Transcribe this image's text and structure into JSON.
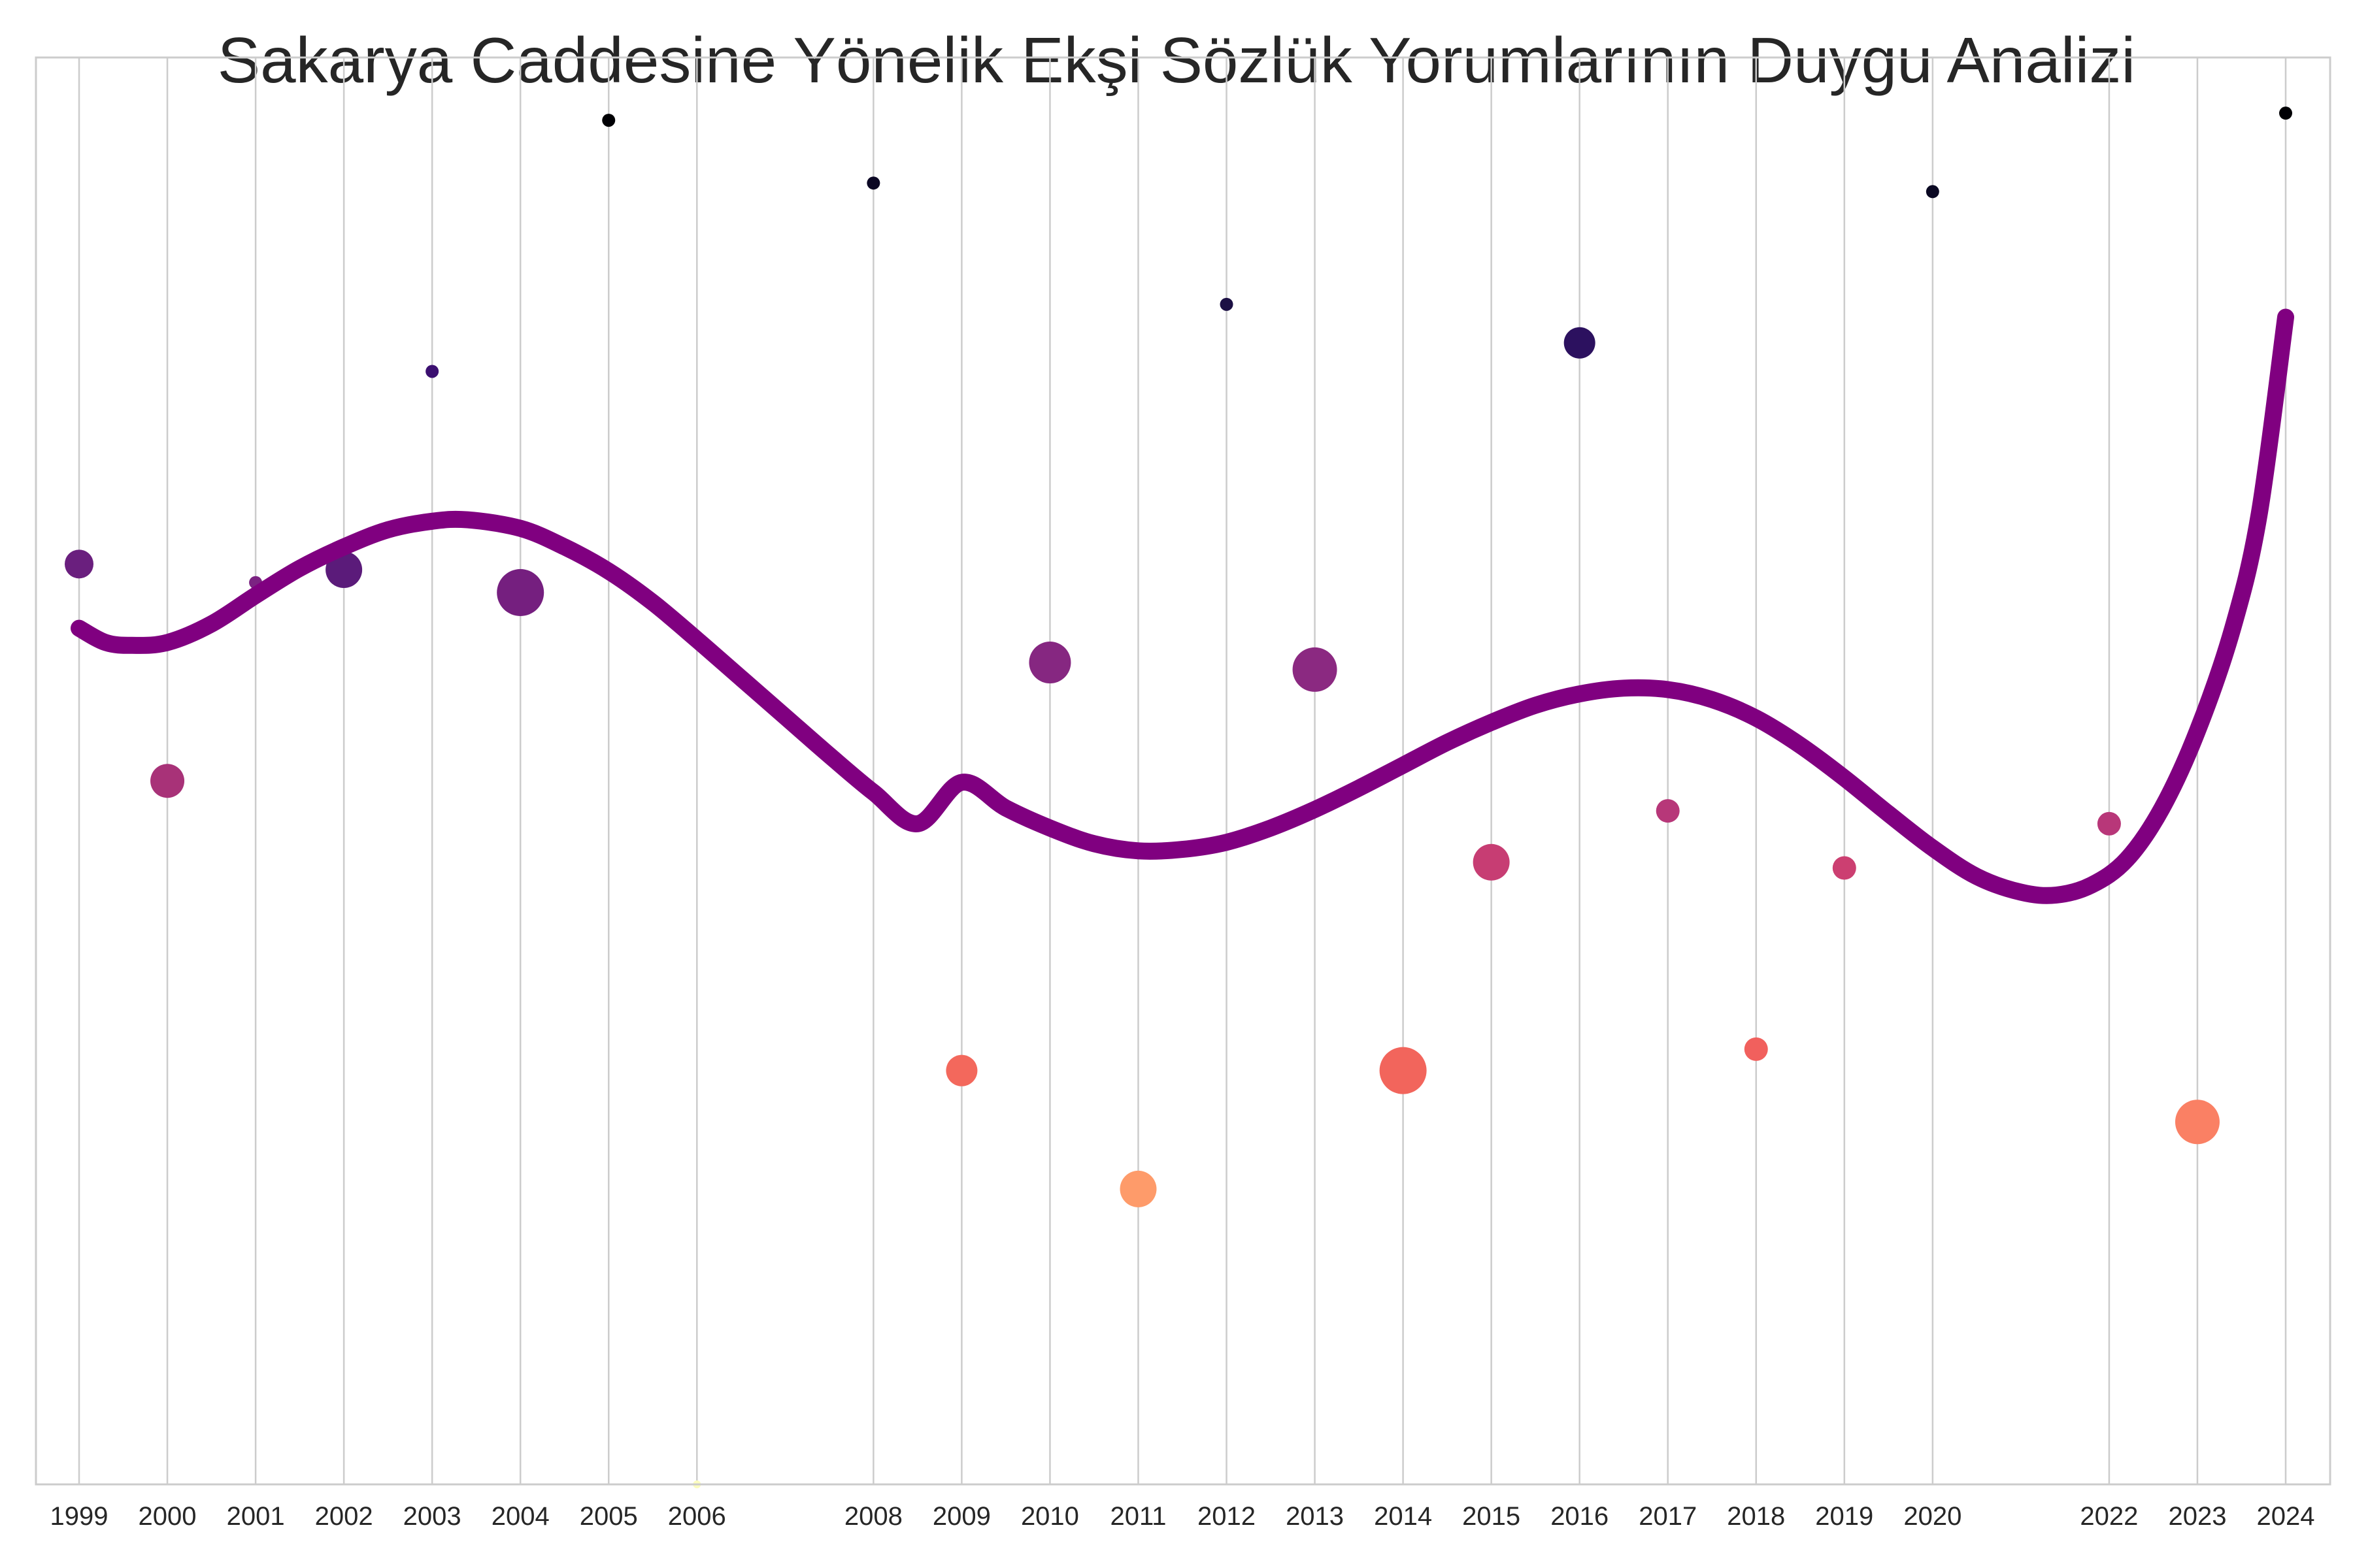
{
  "chart_data": {
    "type": "scatter",
    "title": "Sakarya Caddesine Yönelik Ekşi Sözlük Yorumlarının Duygu Analizi",
    "xlabel": "",
    "ylabel": "",
    "x_ticks": [
      "1999",
      "2000",
      "2001",
      "2002",
      "2003",
      "2004",
      "2005",
      "2006",
      "2008",
      "2009",
      "2010",
      "2011",
      "2012",
      "2013",
      "2014",
      "2015",
      "2016",
      "2017",
      "2018",
      "2019",
      "2020",
      "2022",
      "2023",
      "2024"
    ],
    "xlim": [
      1998.5,
      2024.5
    ],
    "ylim": [
      0,
      1
    ],
    "grid": "vertical",
    "legend": "none",
    "colormap": "magma",
    "points": [
      {
        "x": 1999,
        "y": 0.645,
        "size": 22,
        "color": "#6a1f7e"
      },
      {
        "x": 2000,
        "y": 0.493,
        "size": 26,
        "color": "#a83278"
      },
      {
        "x": 2001,
        "y": 0.632,
        "size": 10,
        "color": "#7b2382"
      },
      {
        "x": 2002,
        "y": 0.641,
        "size": 28,
        "color": "#5b1b7a"
      },
      {
        "x": 2003,
        "y": 0.78,
        "size": 10,
        "color": "#3b0f70"
      },
      {
        "x": 2004,
        "y": 0.625,
        "size": 36,
        "color": "#751f7f"
      },
      {
        "x": 2005,
        "y": 0.956,
        "size": 10,
        "color": "#000004"
      },
      {
        "x": 2006,
        "y": 0.0,
        "size": 6,
        "color": "#fcfdbf"
      },
      {
        "x": 2008,
        "y": 0.912,
        "size": 10,
        "color": "#0b0724"
      },
      {
        "x": 2009,
        "y": 0.29,
        "size": 24,
        "color": "#f3685c"
      },
      {
        "x": 2010,
        "y": 0.576,
        "size": 32,
        "color": "#862781"
      },
      {
        "x": 2011,
        "y": 0.207,
        "size": 28,
        "color": "#fe9b6a"
      },
      {
        "x": 2012,
        "y": 0.827,
        "size": 10,
        "color": "#1c1044"
      },
      {
        "x": 2013,
        "y": 0.571,
        "size": 34,
        "color": "#8b2981"
      },
      {
        "x": 2014,
        "y": 0.29,
        "size": 36,
        "color": "#f2655c"
      },
      {
        "x": 2015,
        "y": 0.436,
        "size": 28,
        "color": "#c73d73"
      },
      {
        "x": 2016,
        "y": 0.8,
        "size": 24,
        "color": "#2c115f"
      },
      {
        "x": 2017,
        "y": 0.472,
        "size": 18,
        "color": "#b73779"
      },
      {
        "x": 2018,
        "y": 0.305,
        "size": 18,
        "color": "#f1605d"
      },
      {
        "x": 2019,
        "y": 0.432,
        "size": 18,
        "color": "#cc3f71"
      },
      {
        "x": 2020,
        "y": 0.906,
        "size": 10,
        "color": "#0a0822"
      },
      {
        "x": 2022,
        "y": 0.463,
        "size": 18,
        "color": "#b83779"
      },
      {
        "x": 2023,
        "y": 0.254,
        "size": 34,
        "color": "#fa8064"
      },
      {
        "x": 2024,
        "y": 0.961,
        "size": 10,
        "color": "#000004"
      }
    ],
    "trend": {
      "color": "#800080",
      "points": [
        [
          1999.0,
          0.6
        ],
        [
          1999.3,
          0.59
        ],
        [
          1999.6,
          0.588
        ],
        [
          2000.0,
          0.59
        ],
        [
          2000.5,
          0.603
        ],
        [
          2001.0,
          0.623
        ],
        [
          2001.5,
          0.642
        ],
        [
          2002.0,
          0.657
        ],
        [
          2002.5,
          0.669
        ],
        [
          2003.0,
          0.675
        ],
        [
          2003.4,
          0.676
        ],
        [
          2004.0,
          0.67
        ],
        [
          2004.5,
          0.657
        ],
        [
          2005.0,
          0.64
        ],
        [
          2005.5,
          0.618
        ],
        [
          2006.0,
          0.592
        ],
        [
          2006.5,
          0.565
        ],
        [
          2007.0,
          0.538
        ],
        [
          2007.5,
          0.511
        ],
        [
          2008.0,
          0.485
        ],
        [
          2008.5,
          0.463
        ],
        [
          2009.0,
          0.492
        ],
        [
          2009.5,
          0.474
        ],
        [
          2010.0,
          0.46
        ],
        [
          2010.5,
          0.449
        ],
        [
          2011.0,
          0.444
        ],
        [
          2011.5,
          0.445
        ],
        [
          2012.0,
          0.45
        ],
        [
          2012.5,
          0.46
        ],
        [
          2013.0,
          0.473
        ],
        [
          2013.5,
          0.488
        ],
        [
          2014.0,
          0.504
        ],
        [
          2014.5,
          0.52
        ],
        [
          2015.0,
          0.534
        ],
        [
          2015.5,
          0.546
        ],
        [
          2016.0,
          0.554
        ],
        [
          2016.5,
          0.558
        ],
        [
          2017.0,
          0.557
        ],
        [
          2017.5,
          0.55
        ],
        [
          2018.0,
          0.537
        ],
        [
          2018.5,
          0.518
        ],
        [
          2019.0,
          0.495
        ],
        [
          2019.5,
          0.47
        ],
        [
          2020.0,
          0.446
        ],
        [
          2020.5,
          0.426
        ],
        [
          2021.0,
          0.415
        ],
        [
          2021.4,
          0.413
        ],
        [
          2021.8,
          0.42
        ],
        [
          2022.2,
          0.438
        ],
        [
          2022.6,
          0.474
        ],
        [
          2023.0,
          0.528
        ],
        [
          2023.4,
          0.6
        ],
        [
          2023.7,
          0.68
        ],
        [
          2024.0,
          0.818
        ]
      ]
    }
  }
}
